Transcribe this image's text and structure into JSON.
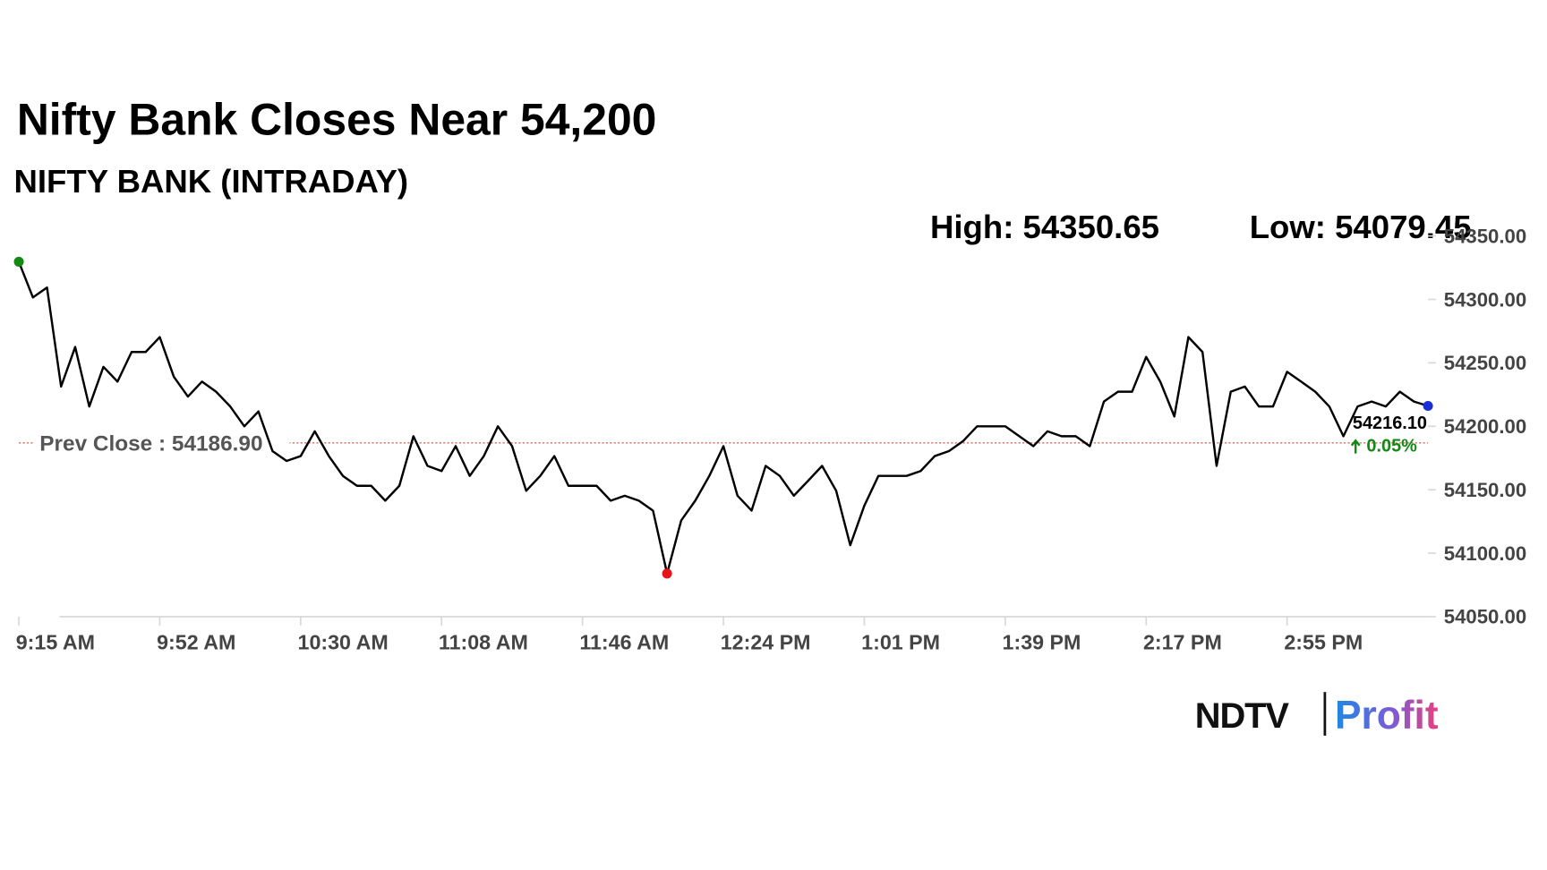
{
  "chart_data": {
    "type": "line",
    "title": "Nifty Bank Closes Near 54,200",
    "subtitle": "NIFTY BANK (INTRADAY)",
    "high_label": "High:",
    "high": 54350.65,
    "low_label": "Low:",
    "low": 54079.45,
    "prev_close_label": "Prev Close :",
    "prev_close": {
      "value": 54186.9,
      "label": "54186.90"
    },
    "last_label": "54216.10",
    "change": {
      "value": 0.05,
      "label": "0.05%"
    },
    "categories": [
      "9:15 AM",
      null,
      null,
      null,
      null,
      null,
      null,
      null,
      null,
      null,
      "9:52 AM",
      null,
      null,
      null,
      null,
      null,
      null,
      null,
      null,
      null,
      "10:30 AM",
      null,
      null,
      null,
      null,
      null,
      null,
      null,
      null,
      null,
      "11:08 AM",
      null,
      null,
      null,
      null,
      null,
      null,
      null,
      null,
      null,
      "11:46 AM",
      null,
      null,
      null,
      null,
      null,
      null,
      null,
      null,
      null,
      "12:24 PM",
      null,
      null,
      null,
      null,
      null,
      null,
      null,
      null,
      null,
      "1:01 PM",
      null,
      null,
      null,
      null,
      null,
      null,
      null,
      null,
      null,
      "1:39 PM",
      null,
      null,
      null,
      null,
      null,
      null,
      null,
      null,
      null,
      "2:17 PM",
      null,
      null,
      null,
      null,
      null,
      null,
      null,
      null,
      null,
      "2:55 PM",
      null,
      null,
      null,
      null,
      null,
      null,
      null,
      null,
      null,
      null
    ],
    "series": [
      {
        "name": "NIFTY BANK",
        "color": "#000000",
        "values": [
          54329.7,
          54301.6,
          54309.4,
          54231.3,
          54262.5,
          54215.6,
          54246.9,
          54235.2,
          54258.6,
          54258.6,
          54270.3,
          54239.1,
          54223.4,
          54235.2,
          54227.3,
          54215.6,
          54200,
          54211.7,
          54180.5,
          54172.7,
          54176.6,
          54196.1,
          54176.6,
          54160.9,
          54153.1,
          54153.1,
          54141.4,
          54153.1,
          54192.2,
          54168.8,
          54164.8,
          54184.4,
          54160.9,
          54176.6,
          54200,
          54184.4,
          54149.2,
          54160.9,
          54176.6,
          54153.1,
          54153.1,
          54153.1,
          54141.4,
          54145.3,
          54141.4,
          54133.6,
          54084,
          54125.8,
          54141.4,
          54160.9,
          54184.4,
          54145.3,
          54133.6,
          54168.8,
          54160.9,
          54145.3,
          54157,
          54168.8,
          54149.2,
          54106.3,
          54137.5,
          54160.9,
          54160.9,
          54160.9,
          54164.8,
          54176.6,
          54180.5,
          54188.3,
          54200,
          54200,
          54200,
          54192.2,
          54184.4,
          54196.1,
          54192.2,
          54192.2,
          54184.4,
          54219.5,
          54227.3,
          54227.3,
          54254.7,
          54235.2,
          54207.8,
          54270.3,
          54258.6,
          54168.8,
          54227.3,
          54231.3,
          54215.6,
          54215.6,
          54243,
          54235.2,
          54227.3,
          54215.6,
          54192.2,
          54215.6,
          54219.5,
          54215.6,
          54227.3,
          54219.5,
          54216.1
        ]
      }
    ],
    "ylim": [
      54050,
      54350
    ],
    "yticks": [
      {
        "value": 54050,
        "label": "54050.00"
      },
      {
        "value": 54100,
        "label": "54100.00"
      },
      {
        "value": 54150,
        "label": "54150.00"
      },
      {
        "value": 54200,
        "label": "54200.00"
      },
      {
        "value": 54250,
        "label": "54250.00"
      },
      {
        "value": 54300,
        "label": "54300.00"
      },
      {
        "value": 54350,
        "label": "54350.00"
      }
    ],
    "logo": {
      "left": "NDTV",
      "right": "Profit"
    }
  }
}
